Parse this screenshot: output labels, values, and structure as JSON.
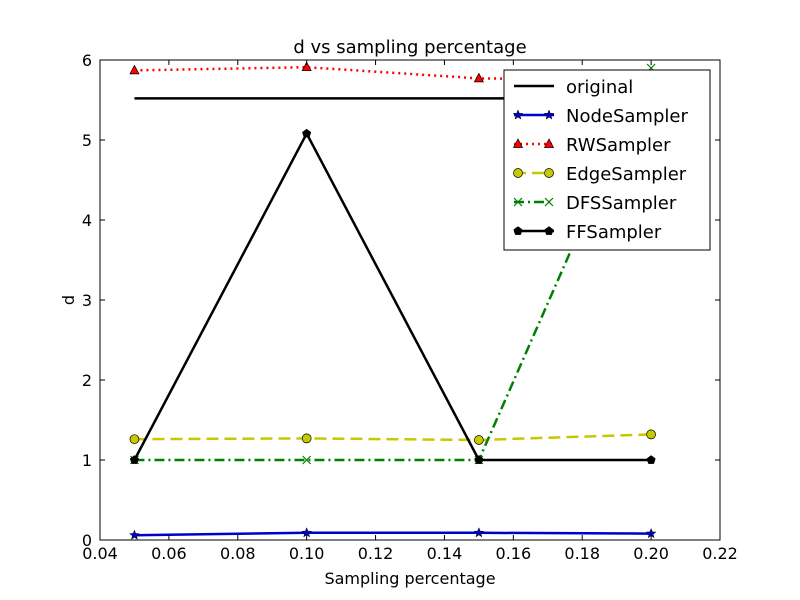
{
  "chart_data": {
    "type": "line",
    "title": "d vs sampling percentage",
    "xlabel": "Sampling percentage",
    "ylabel": "d",
    "xlim": [
      0.04,
      0.22
    ],
    "ylim": [
      0,
      6
    ],
    "xticks": [
      "0.04",
      "0.06",
      "0.08",
      "0.10",
      "0.12",
      "0.14",
      "0.16",
      "0.18",
      "0.20",
      "0.22"
    ],
    "yticks": [
      "0",
      "1",
      "2",
      "3",
      "4",
      "5",
      "6"
    ],
    "grid": false,
    "legend_position": "top-right",
    "x": [
      0.05,
      0.1,
      0.15,
      0.2
    ],
    "series": [
      {
        "name": "original",
        "values": [
          5.52,
          5.52,
          5.52,
          5.52
        ],
        "color": "#000000",
        "marker": "none",
        "linestyle": "solid"
      },
      {
        "name": "NodeSampler",
        "values": [
          0.06,
          0.09,
          0.09,
          0.08
        ],
        "color": "#0000cc",
        "marker": "star",
        "linestyle": "solid"
      },
      {
        "name": "RWSampler",
        "values": [
          5.87,
          5.91,
          5.77,
          5.75
        ],
        "color": "#ff0000",
        "marker": "triangle",
        "linestyle": "dotted"
      },
      {
        "name": "EdgeSampler",
        "values": [
          1.26,
          1.27,
          1.25,
          1.32
        ],
        "color": "#c8c800",
        "marker": "circle",
        "linestyle": "dashed"
      },
      {
        "name": "DFSSampler",
        "values": [
          1.0,
          1.0,
          1.0,
          5.9
        ],
        "color": "#008000",
        "marker": "x",
        "linestyle": "dashdot"
      },
      {
        "name": "FFSampler",
        "values": [
          1.0,
          5.08,
          1.0,
          1.0
        ],
        "color": "#000000",
        "marker": "pentagon",
        "linestyle": "solid"
      }
    ]
  }
}
